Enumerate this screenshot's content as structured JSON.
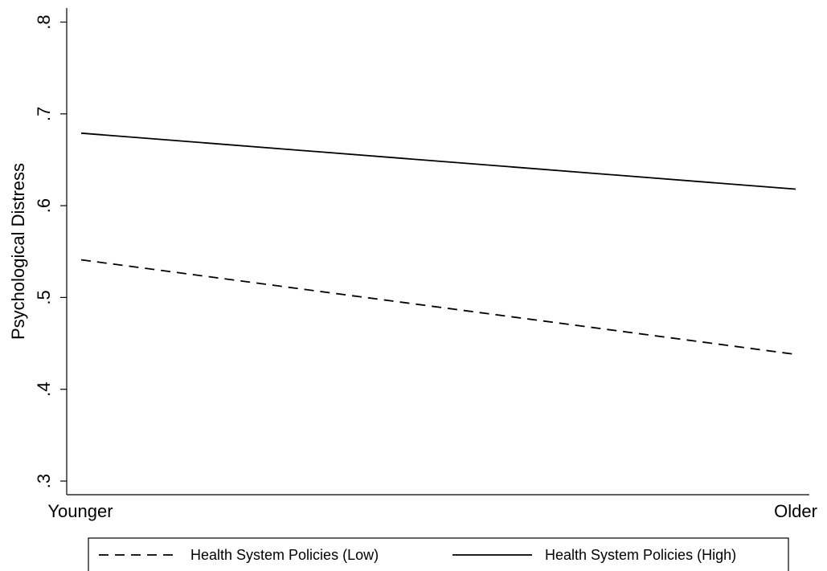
{
  "chart_data": {
    "type": "line",
    "title": "",
    "xlabel": "",
    "ylabel": "Psychological Distress",
    "categories": [
      "Younger",
      "Older"
    ],
    "yticks": [
      0.3,
      0.4,
      0.5,
      0.6,
      0.7,
      0.8
    ],
    "ytick_labels": [
      ".3",
      ".4",
      ".5",
      ".6",
      ".7",
      ".8"
    ],
    "ylim": [
      0.3,
      0.8
    ],
    "grid": false,
    "legend_position": "bottom",
    "series": [
      {
        "name": "Health System Policies (Low)",
        "values": [
          0.541,
          0.438
        ],
        "line_style": "dashed",
        "color": "#000000"
      },
      {
        "name": "Health System Policies (High)",
        "values": [
          0.679,
          0.618
        ],
        "line_style": "solid",
        "color": "#000000"
      }
    ]
  }
}
